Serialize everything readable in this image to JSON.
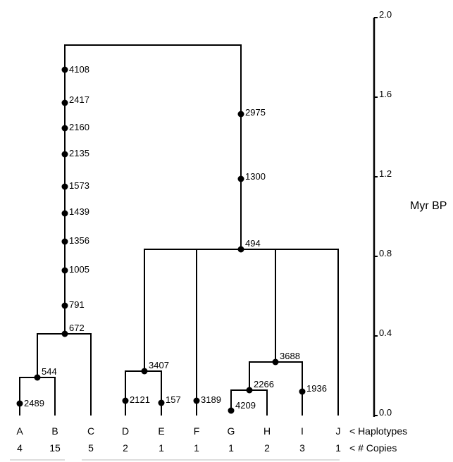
{
  "axis": {
    "unit_label": "Myr BP",
    "ticks": [
      "2.0",
      "1.6",
      "1.2",
      "0.8",
      "0.4",
      "0.0"
    ]
  },
  "row_labels": {
    "haplotypes": "< Haplotypes",
    "copies": "< # Copies"
  },
  "tips": [
    {
      "name": "A",
      "copies": "4"
    },
    {
      "name": "B",
      "copies": "15"
    },
    {
      "name": "C",
      "copies": "5"
    },
    {
      "name": "D",
      "copies": "2"
    },
    {
      "name": "E",
      "copies": "1"
    },
    {
      "name": "F",
      "copies": "1"
    },
    {
      "name": "G",
      "copies": "1"
    },
    {
      "name": "H",
      "copies": "2"
    },
    {
      "name": "I",
      "copies": "3"
    },
    {
      "name": "J",
      "copies": "1"
    }
  ],
  "mutations": {
    "root_left_stem": [
      "4108",
      "2417",
      "2160",
      "2135",
      "1573",
      "1439",
      "1356",
      "1005",
      "791",
      "672"
    ],
    "root_right_stem": [
      "2975",
      "1300",
      "494"
    ],
    "A": "2489",
    "AB_node": "544",
    "DE_node": "3407",
    "D": "2121",
    "E": "157",
    "F": "3189",
    "GHI_node": "3688",
    "GH_node": "2266",
    "G": "4209",
    "I": "1936"
  }
}
